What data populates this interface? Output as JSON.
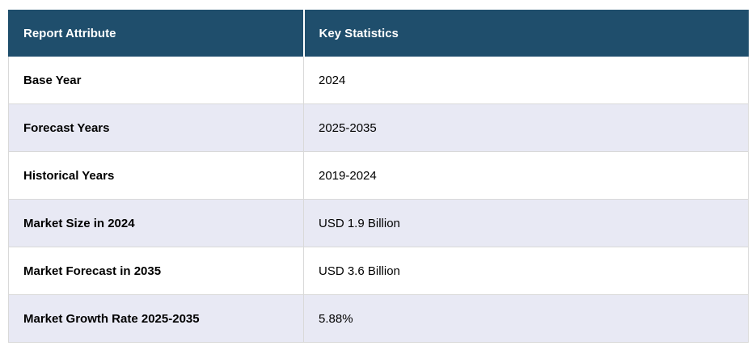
{
  "table": {
    "columns": [
      {
        "label": "Report Attribute"
      },
      {
        "label": "Key Statistics"
      }
    ],
    "rows": [
      {
        "attribute": "Base Year",
        "value": "2024"
      },
      {
        "attribute": "Forecast Years",
        "value": "2025-2035"
      },
      {
        "attribute": "Historical Years",
        "value": "2019-2024"
      },
      {
        "attribute": "Market Size in 2024",
        "value": "USD 1.9 Billion"
      },
      {
        "attribute": "Market Forecast in 2035",
        "value": "USD 3.6 Billion"
      },
      {
        "attribute": "Market Growth Rate 2025-2035",
        "value": "5.88%"
      }
    ],
    "colors": {
      "header_background": "#1f4e6c",
      "header_text": "#ffffff",
      "stripe_background": "#e8e9f4",
      "border": "#d9d9d9"
    }
  }
}
